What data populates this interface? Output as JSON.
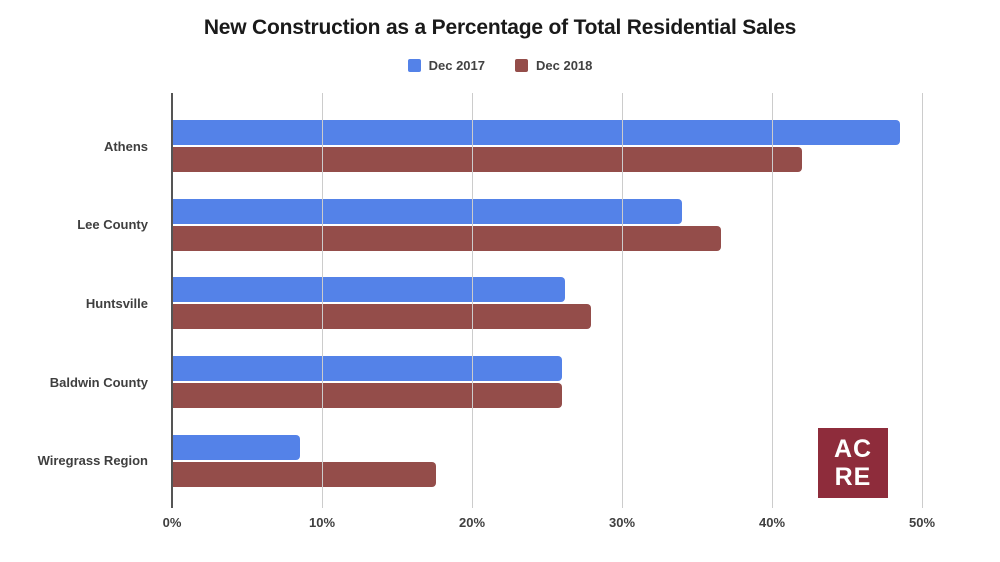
{
  "title": "New Construction as a Percentage of Total Residential Sales",
  "legend": {
    "items": [
      {
        "label": "Dec 2017",
        "color": "#5482e8"
      },
      {
        "label": "Dec 2018",
        "color": "#944d4a"
      }
    ]
  },
  "logo": {
    "line1": "AC",
    "line2": "RE",
    "bg_color": "#8e2c3b",
    "text_color": "#ffffff"
  },
  "chart_data": {
    "type": "bar",
    "orientation": "horizontal",
    "title": "New Construction as a Percentage of Total Residential Sales",
    "categories": [
      "Athens",
      "Lee County",
      "Huntsville",
      "Baldwin County",
      "Wiregrass Region"
    ],
    "series": [
      {
        "name": "Dec 2017",
        "color": "#5482e8",
        "values": [
          48.5,
          34.0,
          26.2,
          26.0,
          8.5
        ]
      },
      {
        "name": "Dec 2018",
        "color": "#944d4a",
        "values": [
          42.0,
          36.6,
          27.9,
          26.0,
          17.6
        ]
      }
    ],
    "xlabel": "",
    "ylabel": "",
    "unit": "%",
    "xlim": [
      0,
      50
    ],
    "x_tick_labels": [
      "0%",
      "10%",
      "20%",
      "30%",
      "40%",
      "50%"
    ],
    "grid": true,
    "legend_position": "top"
  },
  "colors": {
    "background": "#ffffff",
    "gridline": "#cccccc",
    "axis_line": "#555555",
    "title_text": "#1a1a1a",
    "label_text": "#3f3f3f"
  }
}
